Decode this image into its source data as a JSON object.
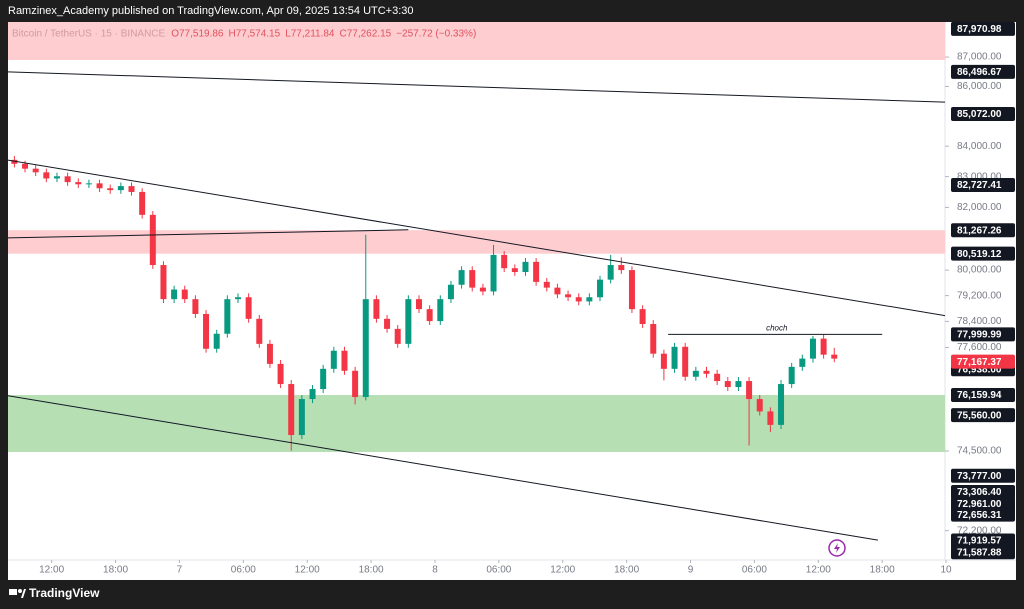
{
  "chart_data": {
    "type": "candlestick",
    "header": "Ramzinex_Academy published on TradingView.com, Apr 09, 2025 13:54 UTC+3:30",
    "legend": {
      "symbol": "Bitcoin / TetherUS · 15 · BINANCE",
      "values": [
        "O77,519.86",
        "H77,574.15",
        "L77,211.84",
        "C77,262.15",
        "−257.72 (−0.33%)"
      ]
    },
    "footer": "TradingView",
    "up_color": "#089981",
    "down_color": "#f23645",
    "log_scale": true,
    "ylim": [
      71370,
      88210
    ],
    "yticks": [
      {
        "value": 87000,
        "label": "87,000.00"
      },
      {
        "value": 86000,
        "label": "86,000.00"
      },
      {
        "value": 84000,
        "label": "84,000.00"
      },
      {
        "value": 83000,
        "label": "83,000.00"
      },
      {
        "value": 82000,
        "label": "82,000.00"
      },
      {
        "value": 80000,
        "label": "80,000.00"
      },
      {
        "value": 79200,
        "label": "79,200.00"
      },
      {
        "value": 78400,
        "label": "78,400.00"
      },
      {
        "value": 77600,
        "label": "77,600.00"
      },
      {
        "value": 74500,
        "label": "74,500.00"
      },
      {
        "value": 72200,
        "label": "72,200.00"
      }
    ],
    "xlim": [
      7.9,
      95.9
    ],
    "xticks": [
      {
        "value": 12,
        "label": "12:00"
      },
      {
        "value": 18,
        "label": "18:00"
      },
      {
        "value": 24,
        "label": "7"
      },
      {
        "value": 30,
        "label": "06:00"
      },
      {
        "value": 36,
        "label": "12:00"
      },
      {
        "value": 42,
        "label": "18:00"
      },
      {
        "value": 48,
        "label": "8"
      },
      {
        "value": 54,
        "label": "06:00"
      },
      {
        "value": 60,
        "label": "12:00"
      },
      {
        "value": 66,
        "label": "18:00"
      },
      {
        "value": 72,
        "label": "9"
      },
      {
        "value": 78,
        "label": "06:00"
      },
      {
        "value": 84,
        "label": "12:00"
      },
      {
        "value": 90,
        "label": "18:00"
      },
      {
        "value": 96,
        "label": "10"
      }
    ],
    "x": [
      8.5,
      9.5,
      10.5,
      11.5,
      12.5,
      13.5,
      14.5,
      15.5,
      16.5,
      17.5,
      18.5,
      19.5,
      20.5,
      21.5,
      22.5,
      23.5,
      24.5,
      25.5,
      26.5,
      27.5,
      28.5,
      29.5,
      30.5,
      31.5,
      32.5,
      33.5,
      34.5,
      35.5,
      36.5,
      37.5,
      38.5,
      39.5,
      40.5,
      41.5,
      42.5,
      43.5,
      44.5,
      45.5,
      46.5,
      47.5,
      48.5,
      49.5,
      50.5,
      51.5,
      52.5,
      53.5,
      54.5,
      55.5,
      56.5,
      57.5,
      58.5,
      59.5,
      60.5,
      61.5,
      62.5,
      63.5,
      64.5,
      65.5,
      66.5,
      67.5,
      68.5,
      69.5,
      70.5,
      71.5,
      72.5,
      73.5,
      74.5,
      75.5,
      76.5,
      77.5,
      78.5,
      79.5,
      80.5,
      81.5,
      82.5,
      83.5,
      84.5,
      85.5
    ],
    "ohlc": [
      [
        83550,
        83680,
        83300,
        83420
      ],
      [
        83420,
        83520,
        83140,
        83260
      ],
      [
        83260,
        83380,
        83020,
        83140
      ],
      [
        83140,
        83260,
        82820,
        82940
      ],
      [
        82940,
        83130,
        82820,
        83010
      ],
      [
        83010,
        83130,
        82700,
        82820
      ],
      [
        82820,
        82940,
        82630,
        82750
      ],
      [
        82750,
        82900,
        82630,
        82780
      ],
      [
        82780,
        82900,
        82500,
        82620
      ],
      [
        82620,
        82740,
        82440,
        82560
      ],
      [
        82560,
        82810,
        82440,
        82690
      ],
      [
        82690,
        82810,
        82380,
        82500
      ],
      [
        82500,
        82620,
        81640,
        81760
      ],
      [
        81760,
        81880,
        80040,
        80160
      ],
      [
        80160,
        80280,
        78970,
        79090
      ],
      [
        79090,
        79510,
        78970,
        79390
      ],
      [
        79390,
        79510,
        78970,
        79090
      ],
      [
        79090,
        79210,
        78510,
        78630
      ],
      [
        78630,
        78750,
        77440,
        77560
      ],
      [
        77560,
        78140,
        77440,
        78020
      ],
      [
        78020,
        79210,
        77900,
        79090
      ],
      [
        79090,
        79270,
        78970,
        79150
      ],
      [
        79150,
        79270,
        78360,
        78480
      ],
      [
        78480,
        78600,
        77590,
        77710
      ],
      [
        77710,
        77830,
        76980,
        77100
      ],
      [
        77100,
        77220,
        76370,
        76490
      ],
      [
        76490,
        76610,
        74510,
        74970
      ],
      [
        74970,
        76160,
        74850,
        76040
      ],
      [
        76040,
        76460,
        75920,
        76340
      ],
      [
        76340,
        77070,
        76220,
        76950
      ],
      [
        76950,
        77620,
        76830,
        77500
      ],
      [
        77500,
        77620,
        76770,
        76890
      ],
      [
        76890,
        77010,
        75880,
        76100
      ],
      [
        76100,
        81120,
        76000,
        79090
      ],
      [
        79090,
        79210,
        78360,
        78480
      ],
      [
        78480,
        78600,
        78050,
        78170
      ],
      [
        78170,
        78290,
        77590,
        77710
      ],
      [
        77710,
        79210,
        77590,
        79090
      ],
      [
        79090,
        79210,
        78660,
        78780
      ],
      [
        78780,
        78900,
        78290,
        78410
      ],
      [
        78410,
        79210,
        78290,
        79090
      ],
      [
        79090,
        79660,
        78970,
        79540
      ],
      [
        79540,
        80120,
        79420,
        80000
      ],
      [
        80000,
        80120,
        79330,
        79450
      ],
      [
        79450,
        79570,
        79210,
        79330
      ],
      [
        79330,
        80800,
        79210,
        80480
      ],
      [
        80480,
        80600,
        79940,
        80060
      ],
      [
        80060,
        80180,
        79820,
        79940
      ],
      [
        79940,
        80380,
        79820,
        80260
      ],
      [
        80260,
        80380,
        79510,
        79630
      ],
      [
        79630,
        79750,
        79330,
        79450
      ],
      [
        79450,
        79570,
        79120,
        79240
      ],
      [
        79240,
        79360,
        79030,
        79150
      ],
      [
        79150,
        79270,
        78900,
        79020
      ],
      [
        79020,
        79270,
        78900,
        79150
      ],
      [
        79150,
        79820,
        79030,
        79700
      ],
      [
        79700,
        80480,
        79580,
        80160
      ],
      [
        80160,
        80400,
        79880,
        80000
      ],
      [
        80000,
        80120,
        78660,
        78780
      ],
      [
        78780,
        78900,
        78200,
        78320
      ],
      [
        78320,
        78440,
        77290,
        77410
      ],
      [
        77410,
        77530,
        76600,
        76950
      ],
      [
        76950,
        77740,
        76830,
        77620
      ],
      [
        77620,
        77740,
        76590,
        76710
      ],
      [
        76710,
        77010,
        76590,
        76890
      ],
      [
        76890,
        77010,
        76680,
        76800
      ],
      [
        76800,
        76920,
        76460,
        76580
      ],
      [
        76580,
        76700,
        76280,
        76400
      ],
      [
        76400,
        76700,
        76280,
        76580
      ],
      [
        76580,
        76700,
        74660,
        76040
      ],
      [
        76040,
        76160,
        75550,
        75670
      ],
      [
        75670,
        75790,
        75060,
        75270
      ],
      [
        75270,
        76610,
        75150,
        76490
      ],
      [
        76490,
        77130,
        76370,
        77010
      ],
      [
        77010,
        77380,
        76890,
        77260
      ],
      [
        77260,
        77950,
        77140,
        77870
      ],
      [
        77870,
        77990,
        77260,
        77380
      ],
      [
        77380,
        77590,
        77150,
        77260
      ]
    ],
    "zones": [
      {
        "low": 86900,
        "high": 88210,
        "color": "#fdcdd0"
      },
      {
        "low": 80519.12,
        "high": 81267.26,
        "color": "#fdcdd0"
      },
      {
        "low": 74470,
        "high": 76159.94,
        "color": "#b6dfb4"
      }
    ],
    "trendlines": [
      {
        "x": [
          7.9,
          95.9
        ],
        "y": [
          86496.67,
          85470
        ]
      },
      {
        "x": [
          7.9,
          95.9
        ],
        "y": [
          83540,
          78580
        ]
      },
      {
        "x": [
          7.9,
          89.6
        ],
        "y": [
          76140,
          71930
        ]
      },
      {
        "x": [
          7.9,
          45.5
        ],
        "y": [
          81020,
          81280
        ]
      },
      {
        "x": [
          69.9,
          90.0
        ],
        "y": [
          77999.99,
          77999.99
        ]
      }
    ],
    "annotations": [
      {
        "text": "choch",
        "x": 80.1,
        "y": 77999.99
      }
    ],
    "price_labels": [
      {
        "value": 87970.98,
        "label": "87,970.98"
      },
      {
        "value": 86496.67,
        "label": "86,496.67"
      },
      {
        "value": 85072,
        "label": "85,072.00"
      },
      {
        "value": 82727.41,
        "label": "82,727.41"
      },
      {
        "value": 81267.26,
        "label": "81,267.26"
      },
      {
        "value": 80519.12,
        "label": "80,519.12"
      },
      {
        "value": 77999.99,
        "label": "77,999.99"
      },
      {
        "value": 76938,
        "label": "76,938.00"
      },
      {
        "value": 76159.94,
        "label": "76,159.94"
      },
      {
        "value": 75560,
        "label": "75,560.00"
      },
      {
        "value": 73777,
        "label": "73,777.00"
      },
      {
        "value": 73306.4,
        "label": "73,306.40"
      },
      {
        "value": 72961,
        "label": "72,961.00"
      },
      {
        "value": 72656.31,
        "label": "72,656.31"
      },
      {
        "value": 71919.57,
        "label": "71,919.57"
      },
      {
        "value": 71587.88,
        "label": "71,587.88"
      }
    ],
    "current_price": {
      "value": 77167.37,
      "label": "77,167.37",
      "color": "#f23645"
    }
  }
}
